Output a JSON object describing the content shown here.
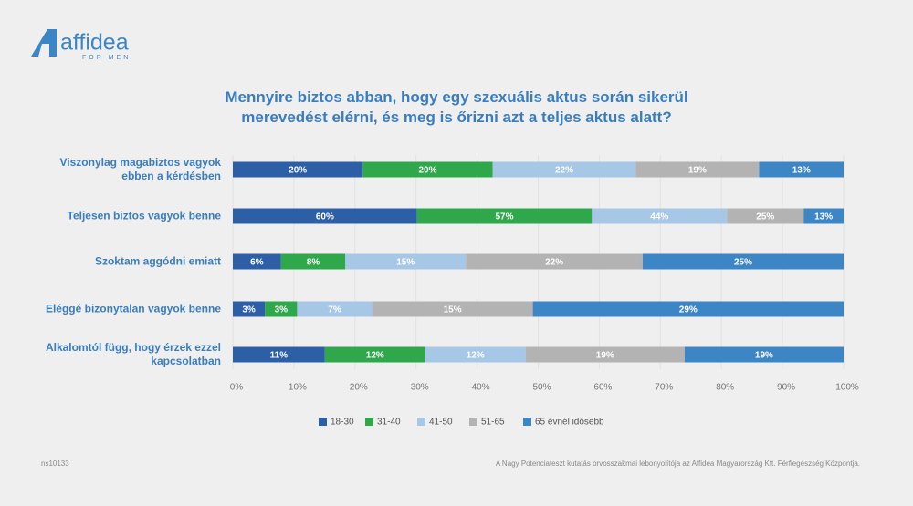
{
  "logo": {
    "name": "affidea",
    "tagline": "FOR MEN"
  },
  "chart_data": {
    "type": "bar",
    "orientation": "horizontal",
    "stacking": "normalized",
    "title": "Mennyire biztos abban, hogy egy szexuális aktus során sikerül merevedést elérni, és meg is őrizni azt a teljes aktus alatt?",
    "categories": [
      "Viszonylag magabiztos vagyok ebben a kérdésben",
      "Teljesen biztos vagyok benne",
      "Szoktam aggódni emiatt",
      "Eléggé bizonytalan vagyok benne",
      "Alkalomtól függ, hogy érzek ezzel kapcsolatban"
    ],
    "series": [
      {
        "name": "18-30",
        "color": "#2c5fa6",
        "values": [
          20,
          60,
          6,
          3,
          11
        ],
        "value_labels": [
          "20%",
          "60%",
          "6%",
          "3%",
          "11%"
        ]
      },
      {
        "name": "31-40",
        "color": "#2fa84b",
        "values": [
          20,
          57,
          8,
          3,
          12
        ],
        "value_labels": [
          "20%",
          "57%",
          "8%",
          "3%",
          "12%"
        ]
      },
      {
        "name": "41-50",
        "color": "#a7c7e7",
        "values": [
          22,
          44,
          15,
          7,
          12
        ],
        "value_labels": [
          "22%",
          "44%",
          "15%",
          "7%",
          "12%"
        ]
      },
      {
        "name": "51-65",
        "color": "#b3b3b3",
        "values": [
          19,
          25,
          22,
          15,
          19
        ],
        "value_labels": [
          "19%",
          "25%",
          "22%",
          "15%",
          "19%"
        ]
      },
      {
        "name": "65 évnél idősebb",
        "color": "#3d86c5",
        "values": [
          13,
          13,
          25,
          29,
          19
        ],
        "value_labels": [
          "13%",
          "13%",
          "25%",
          "29%",
          "19%"
        ]
      }
    ],
    "xlim": [
      0,
      100
    ],
    "xticks": [
      {
        "value": 0,
        "label": "0%"
      },
      {
        "value": 10,
        "label": "10%"
      },
      {
        "value": 20,
        "label": "20%"
      },
      {
        "value": 30,
        "label": "30%"
      },
      {
        "value": 40,
        "label": "40%"
      },
      {
        "value": 50,
        "label": "50%"
      },
      {
        "value": 60,
        "label": "60%"
      },
      {
        "value": 70,
        "label": "70%"
      },
      {
        "value": 80,
        "label": "80%"
      },
      {
        "value": 90,
        "label": "90%"
      },
      {
        "value": 100,
        "label": "100%"
      }
    ],
    "grid": true,
    "legend": "bottom"
  },
  "footer": {
    "code": "ns10133",
    "note": "A Nagy Potenciateszt kutatás orvosszakmai lebonyolítója az Affidea Magyarország Kft. Férfiegészség Központja."
  }
}
